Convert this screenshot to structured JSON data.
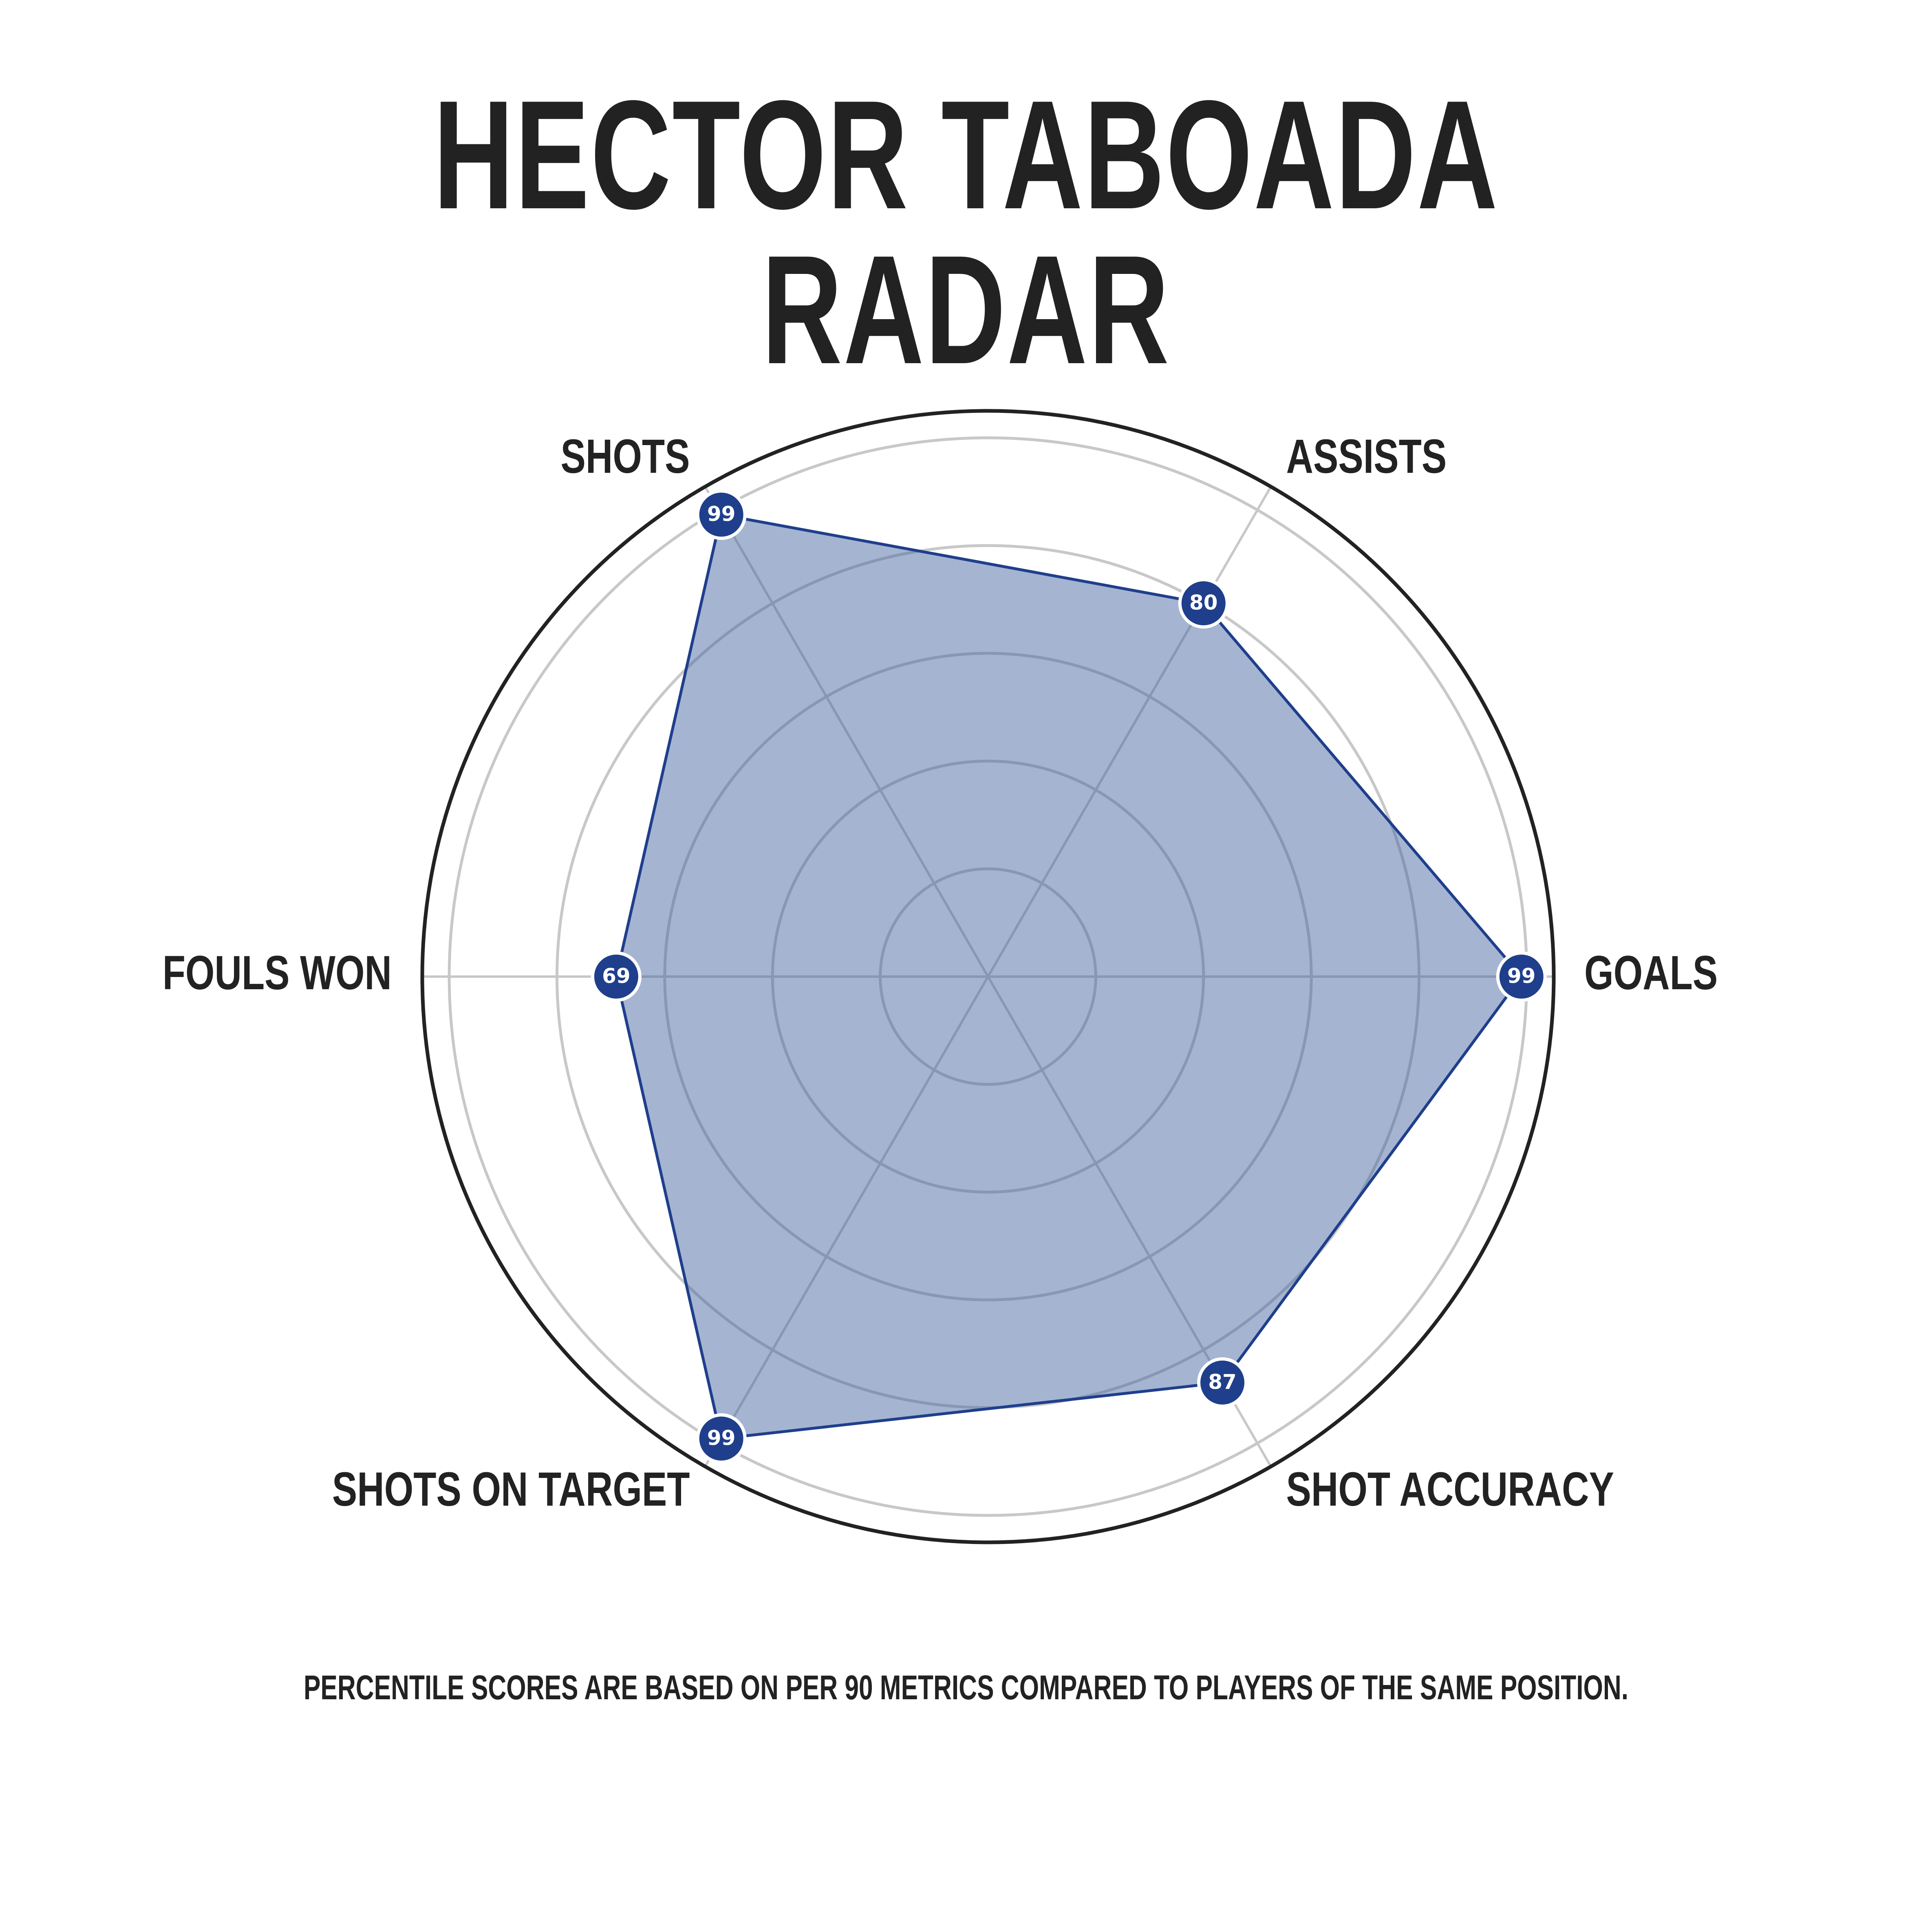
{
  "title": "HECTOR TABOADA RADAR",
  "footnote": "PERCENTILE SCORES ARE BASED ON PER 90 METRICS COMPARED TO PLAYERS OF THE SAME POSITION.",
  "colors": {
    "fill": "#3f5f9e",
    "line": "#1f3f8c",
    "marker": "#1f3f8c",
    "outer_ring": "#222222",
    "grid": "#c8c8c8",
    "text": "#222222"
  },
  "chart_data": {
    "type": "radar",
    "title": "HECTOR TABOADA RADAR",
    "categories": [
      "GOALS",
      "ASSISTS",
      "SHOTS",
      "FOULS WON",
      "SHOTS ON TARGET",
      "SHOT ACCURACY"
    ],
    "series": [
      {
        "values": [
          99,
          80,
          99,
          69,
          99,
          87
        ]
      }
    ],
    "rlim": [
      0,
      105
    ],
    "grid_rings": [
      20,
      40,
      60,
      80,
      100
    ],
    "grid": true
  }
}
